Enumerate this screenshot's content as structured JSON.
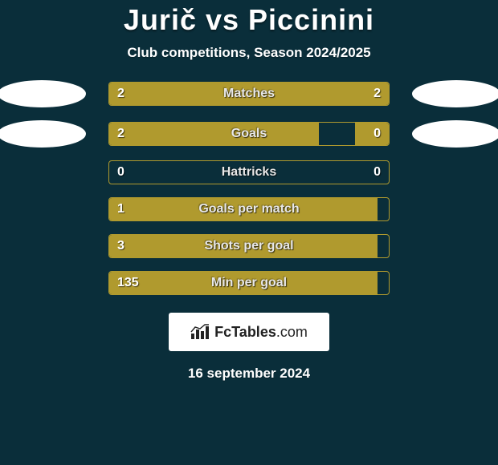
{
  "header": {
    "title": "Jurič vs Piccinini",
    "subtitle": "Club competitions, Season 2024/2025"
  },
  "bars": [
    {
      "label": "Matches",
      "left": "2",
      "right": "2",
      "left_pct": 50,
      "right_pct": 50,
      "show_right": true,
      "oval": true
    },
    {
      "label": "Goals",
      "left": "2",
      "right": "0",
      "left_pct": 75,
      "right_pct": 12,
      "show_right": true,
      "oval": true
    },
    {
      "label": "Hattricks",
      "left": "0",
      "right": "0",
      "left_pct": 0,
      "right_pct": 0,
      "show_right": true,
      "oval": false
    },
    {
      "label": "Goals per match",
      "left": "1",
      "right": "",
      "left_pct": 96,
      "right_pct": 0,
      "show_right": false,
      "oval": false
    },
    {
      "label": "Shots per goal",
      "left": "3",
      "right": "",
      "left_pct": 96,
      "right_pct": 0,
      "show_right": false,
      "oval": false
    },
    {
      "label": "Min per goal",
      "left": "135",
      "right": "",
      "left_pct": 96,
      "right_pct": 0,
      "show_right": false,
      "oval": false
    }
  ],
  "style": {
    "bar_color": "#b09a2e",
    "bg_color": "#0a2e3a",
    "bar_border": "#b09a2e",
    "text_color": "#ffffff"
  },
  "logo": {
    "brand_bold": "FcTables",
    "brand_light": ".com"
  },
  "date": "16 september 2024"
}
